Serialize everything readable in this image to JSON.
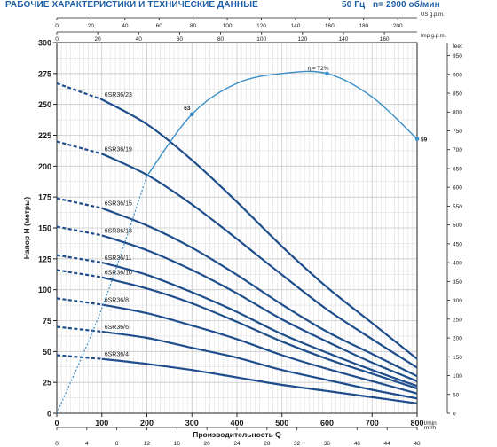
{
  "header": {
    "title": "РАБОЧИЕ ХАРАКТЕРИСТИКИ И ТЕХНИЧЕСКИЕ ДАННЫЕ",
    "freq": "50 Гц",
    "speed": "n= 2900 об/мин"
  },
  "colors": {
    "curve": "#1f4e8c",
    "efficiency": "#3a8fc8",
    "grid": "#c8c8c8",
    "frame": "#222222",
    "text": "#1a1a1a",
    "header": "#1f5fa6"
  },
  "chart_data": {
    "type": "line",
    "xlabel": "Производительность Q",
    "ylabel": "Напор H (метры)",
    "xlim": [
      0,
      800
    ],
    "ylim": [
      0,
      300
    ],
    "x_ticks": [
      "0",
      "100",
      "200",
      "300",
      "400",
      "500",
      "600",
      "700",
      "800"
    ],
    "y_ticks": [
      "0",
      "25",
      "50",
      "75",
      "100",
      "125",
      "150",
      "175",
      "200",
      "225",
      "250",
      "275",
      "300"
    ],
    "x_unit": "l/min",
    "x2_unit": "m³/h",
    "x2_ticks": [
      "0",
      "4",
      "8",
      "12",
      "16",
      "20",
      "24",
      "28",
      "32",
      "36",
      "40",
      "44",
      "48"
    ],
    "top_unit_us": "US g.p.m.",
    "top_unit_imp": "Imp g.p.m.",
    "top_us_ticks": [
      "0",
      "20",
      "40",
      "60",
      "80",
      "100",
      "120",
      "140",
      "160",
      "180",
      "200"
    ],
    "top_imp_ticks": [
      "0",
      "20",
      "40",
      "60",
      "80",
      "100",
      "120",
      "140",
      "160",
      "180"
    ],
    "right_unit": "feet",
    "right_ticks": [
      "0",
      "50",
      "100",
      "150",
      "200",
      "250",
      "300",
      "350",
      "400",
      "450",
      "500",
      "550",
      "600",
      "650",
      "700",
      "750",
      "800",
      "850",
      "900",
      "950"
    ],
    "series": [
      {
        "name": "6SR36/23",
        "values": [
          [
            0,
            267
          ],
          [
            100,
            254
          ],
          [
            200,
            234
          ],
          [
            300,
            205
          ],
          [
            400,
            171
          ],
          [
            500,
            135
          ],
          [
            600,
            102
          ],
          [
            700,
            73
          ],
          [
            800,
            44
          ]
        ]
      },
      {
        "name": "6SR36/19",
        "values": [
          [
            0,
            220
          ],
          [
            100,
            210
          ],
          [
            200,
            193
          ],
          [
            300,
            169
          ],
          [
            400,
            141
          ],
          [
            500,
            112
          ],
          [
            600,
            84
          ],
          [
            700,
            60
          ],
          [
            800,
            37
          ]
        ]
      },
      {
        "name": "6SR36/15",
        "values": [
          [
            0,
            174
          ],
          [
            100,
            166
          ],
          [
            200,
            152
          ],
          [
            300,
            134
          ],
          [
            400,
            112
          ],
          [
            500,
            88
          ],
          [
            600,
            66
          ],
          [
            700,
            48
          ],
          [
            800,
            30
          ]
        ]
      },
      {
        "name": "6SR36/13",
        "values": [
          [
            0,
            151
          ],
          [
            100,
            144
          ],
          [
            200,
            132
          ],
          [
            300,
            116
          ],
          [
            400,
            97
          ],
          [
            500,
            76
          ],
          [
            600,
            58
          ],
          [
            700,
            41
          ],
          [
            800,
            26
          ]
        ]
      },
      {
        "name": "6SR36/11",
        "values": [
          [
            0,
            128
          ],
          [
            100,
            122
          ],
          [
            200,
            112
          ],
          [
            300,
            98
          ],
          [
            400,
            82
          ],
          [
            500,
            64
          ],
          [
            600,
            49
          ],
          [
            700,
            35
          ],
          [
            800,
            22
          ]
        ]
      },
      {
        "name": "6SR36/10",
        "values": [
          [
            0,
            116
          ],
          [
            100,
            110
          ],
          [
            200,
            101
          ],
          [
            300,
            89
          ],
          [
            400,
            74
          ],
          [
            500,
            58
          ],
          [
            600,
            44
          ],
          [
            700,
            32
          ],
          [
            800,
            20
          ]
        ]
      },
      {
        "name": "6SR36/8",
        "values": [
          [
            0,
            93
          ],
          [
            100,
            88
          ],
          [
            200,
            81
          ],
          [
            300,
            71
          ],
          [
            400,
            60
          ],
          [
            500,
            47
          ],
          [
            600,
            36
          ],
          [
            700,
            26
          ],
          [
            800,
            16
          ]
        ]
      },
      {
        "name": "6SR36/6",
        "values": [
          [
            0,
            70
          ],
          [
            100,
            66
          ],
          [
            200,
            61
          ],
          [
            300,
            53
          ],
          [
            400,
            45
          ],
          [
            500,
            35
          ],
          [
            600,
            27
          ],
          [
            700,
            19
          ],
          [
            800,
            12
          ]
        ]
      },
      {
        "name": "6SR36/4",
        "values": [
          [
            0,
            47
          ],
          [
            100,
            44
          ],
          [
            200,
            40
          ],
          [
            300,
            35
          ],
          [
            400,
            29
          ],
          [
            500,
            23
          ],
          [
            600,
            18
          ],
          [
            700,
            13
          ],
          [
            800,
            8
          ]
        ]
      }
    ],
    "efficiency": {
      "label": "η = 72%",
      "points": [
        [
          0,
          0
        ],
        [
          100,
          85
        ],
        [
          200,
          192
        ],
        [
          300,
          242
        ],
        [
          400,
          267
        ],
        [
          500,
          275
        ],
        [
          600,
          275
        ],
        [
          700,
          256
        ],
        [
          800,
          222
        ]
      ],
      "markers": [
        {
          "x": 300,
          "y": 242,
          "label": "63"
        },
        {
          "x": 600,
          "y": 275,
          "label": ""
        },
        {
          "x": 800,
          "y": 222,
          "label": "59"
        }
      ]
    }
  }
}
